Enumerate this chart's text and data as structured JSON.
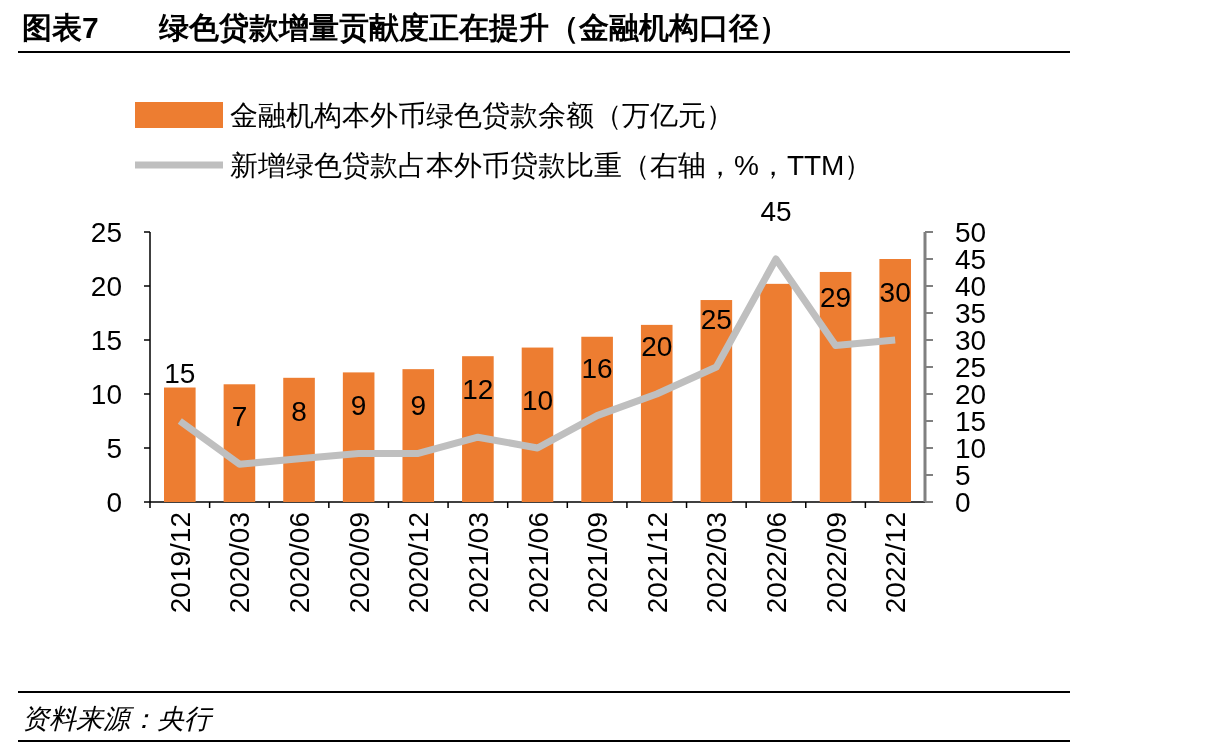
{
  "chart_data": {
    "type": "bar",
    "title": "图表7　　绿色贷款增量贡献度正在提升（金融机构口径）",
    "categories": [
      "2019/12",
      "2020/03",
      "2020/06",
      "2020/09",
      "2020/12",
      "2021/03",
      "2021/06",
      "2021/09",
      "2021/12",
      "2022/03",
      "2022/06",
      "2022/09",
      "2022/12"
    ],
    "series": [
      {
        "name": "金融机构本外币绿色贷款余额（万亿元）",
        "color": "#ed7d31",
        "values": [
          10.6,
          10.9,
          11.5,
          12.0,
          12.3,
          13.5,
          14.3,
          15.3,
          16.4,
          18.7,
          20.2,
          21.3,
          22.5
        ]
      },
      {
        "name": "新增绿色贷款占本外币贷款比重（右轴，%，TTM）",
        "type": "line",
        "axis": "y2",
        "color": "#bfbfbf",
        "values": [
          15,
          7,
          8,
          9,
          9,
          12,
          10,
          16,
          20,
          25,
          45,
          29,
          30
        ],
        "value_labels": [
          "15",
          "7",
          "8",
          "9",
          "9",
          "12",
          "10",
          "16",
          "20",
          "25",
          "45",
          "29",
          "30"
        ]
      }
    ],
    "ylim": [
      0,
      25
    ],
    "yticks": [
      0,
      5,
      10,
      15,
      20,
      25
    ],
    "y2lim": [
      0,
      50
    ],
    "y2ticks": [
      0,
      5,
      10,
      15,
      20,
      25,
      30,
      35,
      40,
      45,
      50
    ],
    "legend": "top",
    "annotations": [
      "资料来源：央行"
    ]
  }
}
